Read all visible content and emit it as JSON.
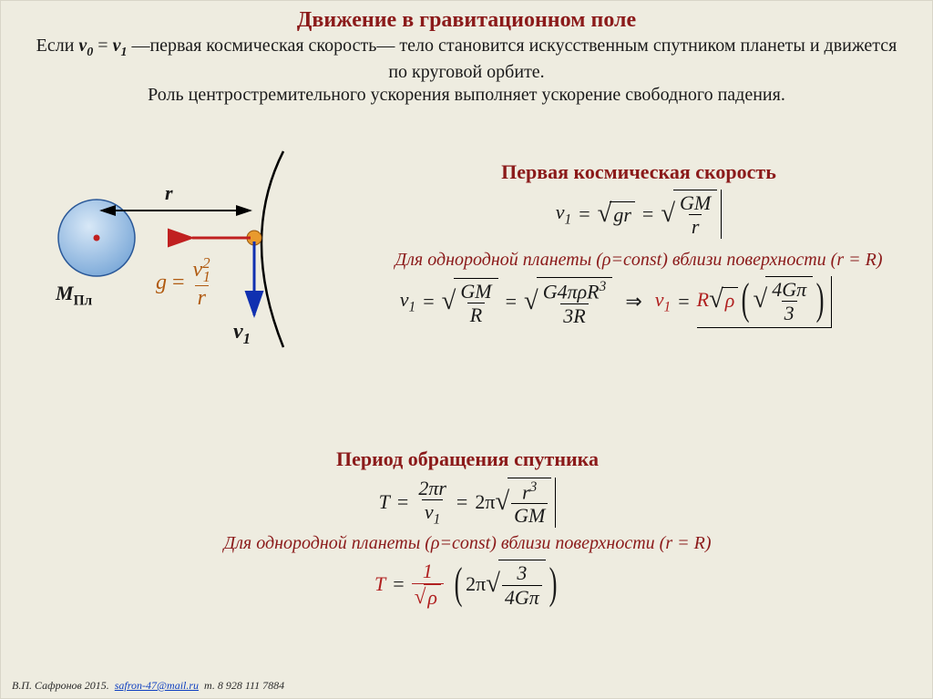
{
  "title": "Движение в гравитационном поле",
  "intro_html": "Если <span class='v'>v<span class='sub'>0</span></span> = <span class='v'>v<span class='sub'>1</span></span> —первая космическая скорость— тело становится искусственным спутником планеты и движется по круговой орбите.<br>Роль центростремительного ускорения выполняет ускорение свободного падения.",
  "sections": {
    "first_cosmic": "Первая космическая скорость",
    "uniform_planet": "Для  однородной планеты (ρ=const) вблизи  поверхности (r = R)",
    "orbital_period": "Период обращения спутника",
    "uniform_planet2": "Для  однородной планеты (ρ=const) вблизи  поверхности (r = R)"
  },
  "diagram": {
    "r_label": "r",
    "planet_mass": "M",
    "planet_mass_sub": "Пл",
    "g_formula": {
      "lhs": "g",
      "num": "v",
      "num_sub": "1",
      "num_sup": "2",
      "den": "r"
    },
    "v1_label": "v",
    "v1_sub": "1",
    "planet_fill": "#9cc0e6",
    "planet_stroke": "#2a5898",
    "orbit_stroke": "#000000",
    "satellite_fill": "#e89a2e",
    "red_arrow": "#c02020",
    "blue_arrow": "#1030b0"
  },
  "formulas": {
    "v1_basic": {
      "v": "v",
      "sub": "1",
      "eq": "=",
      "gr": "gr",
      "GM": "GM",
      "r": "r"
    },
    "v1_uniform": {
      "GM": "GM",
      "R": "R",
      "G4piR3": "G4πρR",
      "R3sup": "3",
      "den": "3R",
      "Rsqrt": "R",
      "rho": "ρ",
      "inner_num": "4Gπ",
      "inner_den": "3"
    },
    "T_basic": {
      "T": "T",
      "num": "2πr",
      "v1": "v",
      "v1sub": "1",
      "two_pi": "2π",
      "r3": "r",
      "r3sup": "3",
      "GM": "GM"
    },
    "T_uniform": {
      "T": "T",
      "one": "1",
      "rho": "ρ",
      "two_pi": "2π",
      "num": "3",
      "den": "4Gπ"
    }
  },
  "footer": {
    "author": "В.П. Сафронов 2015.",
    "email": "safron-47@mail.ru",
    "phone": "т. 8 928 111 7884"
  },
  "colors": {
    "bg": "#eeece0",
    "heading": "#8b1a1a",
    "text": "#1a1a1a",
    "orange": "#b05a10",
    "red": "#b02020"
  }
}
